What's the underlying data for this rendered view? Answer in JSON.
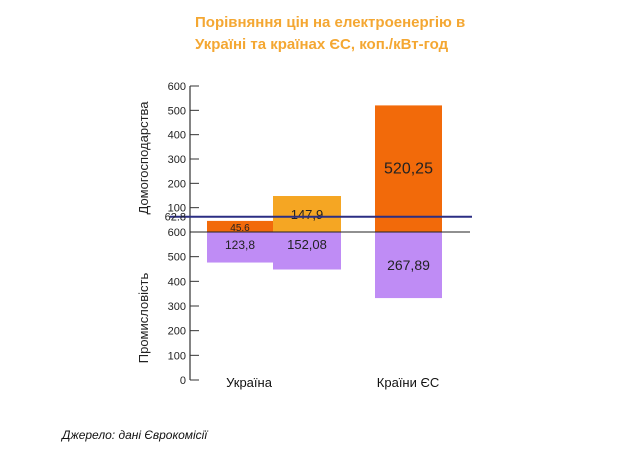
{
  "chart_data": {
    "type": "bar",
    "title_lines": [
      "Порівняння цін на електроенергію в",
      "Україні та країнах ЄС, коп./кВт-год"
    ],
    "categories": [
      "Україна",
      "Країни ЄС"
    ],
    "upper_axis": {
      "label": "Домогосподарства",
      "ticks": [
        "100",
        "200",
        "300",
        "400",
        "500",
        "600"
      ],
      "ylim": [
        0,
        600
      ]
    },
    "lower_axis": {
      "label": "Промисловість",
      "ticks": [
        "0",
        "100",
        "200",
        "300",
        "400",
        "500",
        "600"
      ],
      "ylim": [
        0,
        600
      ],
      "inverted": true
    },
    "reference_line": {
      "label": "62.8",
      "value": 62.8,
      "color": "#2b2e83"
    },
    "bars": [
      {
        "category": "Україна",
        "part": "upper",
        "value": 45.6,
        "label": "45.6",
        "color": "#f26a0a"
      },
      {
        "category": "Україна",
        "part": "upper",
        "value": 147.9,
        "label": "147,9",
        "color": "#f5a623"
      },
      {
        "category": "Україна",
        "part": "lower",
        "value": 123.8,
        "label": "123,8",
        "color": "#bf8cf5"
      },
      {
        "category": "Україна",
        "part": "lower",
        "value": 152.08,
        "label": "152,08",
        "color": "#bf8cf5"
      },
      {
        "category": "Країни ЄС",
        "part": "upper",
        "value": 520.25,
        "label": "520,25",
        "color": "#f26a0a"
      },
      {
        "category": "Країни ЄС",
        "part": "lower",
        "value": 267.89,
        "label": "267,89",
        "color": "#bf8cf5"
      }
    ]
  },
  "source_text": "Джерело:  дані  Єврокомісії"
}
